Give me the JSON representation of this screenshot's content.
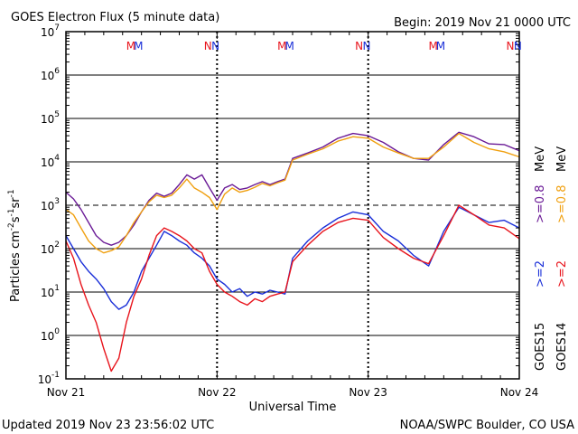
{
  "title": "GOES Electron Flux (5 minute data)",
  "begin_label": "Begin: 2019 Nov 21 0000 UTC",
  "footer_left": "Updated 2019 Nov 23 23:56:02 UTC",
  "footer_right": "NOAA/SWPC Boulder, CO USA",
  "colors": {
    "goes15_2mev": "#1a2fd8",
    "goes14_2mev": "#e8141c",
    "goes15_08mev": "#6a1a96",
    "goes14_08mev": "#f0a010",
    "grid": "#000000"
  },
  "legend": {
    "goes15_label": "GOES15",
    "goes14_label": "GOES14",
    "goes15_2mev": ">=2",
    "goes14_2mev": ">=2",
    "goes15_08mev": ">=0.8",
    "goes14_08mev": ">=0.8",
    "unit": "MeV"
  },
  "markers": [
    {
      "label": "M",
      "color": "#e8141c",
      "day": 0.43
    },
    {
      "label": "M",
      "color": "#1a2fd8",
      "day": 0.48
    },
    {
      "label": "N",
      "color": "#e8141c",
      "day": 0.94
    },
    {
      "label": "N",
      "color": "#1a2fd8",
      "day": 0.99
    },
    {
      "label": "M",
      "color": "#e8141c",
      "day": 1.43
    },
    {
      "label": "M",
      "color": "#1a2fd8",
      "day": 1.48
    },
    {
      "label": "N",
      "color": "#e8141c",
      "day": 1.94
    },
    {
      "label": "N",
      "color": "#1a2fd8",
      "day": 1.99
    },
    {
      "label": "M",
      "color": "#e8141c",
      "day": 2.43
    },
    {
      "label": "M",
      "color": "#1a2fd8",
      "day": 2.48
    },
    {
      "label": "N",
      "color": "#e8141c",
      "day": 2.94
    },
    {
      "label": "N",
      "color": "#1a2fd8",
      "day": 2.99
    }
  ],
  "chart_data": {
    "type": "line",
    "title": "GOES Electron Flux (5 minute data)",
    "xlabel": "Universal Time",
    "ylabel": "Particles cm-2s-1sr-1",
    "x_ticks": [
      "Nov 21",
      "Nov 22",
      "Nov 23",
      "Nov 24"
    ],
    "y_ticks": [
      {
        "base": "10",
        "exp": "-1"
      },
      {
        "base": "10",
        "exp": "0"
      },
      {
        "base": "10",
        "exp": "1"
      },
      {
        "base": "10",
        "exp": "2"
      },
      {
        "base": "10",
        "exp": "3"
      },
      {
        "base": "10",
        "exp": "4"
      },
      {
        "base": "10",
        "exp": "5"
      },
      {
        "base": "10",
        "exp": "6"
      },
      {
        "base": "10",
        "exp": "7"
      }
    ],
    "xlim": [
      "2019-11-21 00:00",
      "2019-11-24 00:00"
    ],
    "ylim": [
      0.1,
      10000000
    ],
    "y_scale": "log",
    "threshold_flux": 1000,
    "grid": true,
    "series": [
      {
        "name": "GOES15 >=0.8 MeV",
        "color": "#6a1a96",
        "x": [
          "2019-11-21 00:00",
          "2019-11-21 01:12",
          "2019-11-21 02:24",
          "2019-11-21 03:36",
          "2019-11-21 04:48",
          "2019-11-21 06:00",
          "2019-11-21 07:12",
          "2019-11-21 08:24",
          "2019-11-21 09:36",
          "2019-11-21 10:48",
          "2019-11-21 12:00",
          "2019-11-21 13:12",
          "2019-11-21 14:24",
          "2019-11-21 15:36",
          "2019-11-21 16:48",
          "2019-11-21 18:00",
          "2019-11-21 19:12",
          "2019-11-21 20:24",
          "2019-11-21 21:36",
          "2019-11-21 22:48",
          "2019-11-22 00:00",
          "2019-11-22 01:12",
          "2019-11-22 02:24",
          "2019-11-22 03:36",
          "2019-11-22 04:48",
          "2019-11-22 06:00",
          "2019-11-22 07:12",
          "2019-11-22 08:24",
          "2019-11-22 09:36",
          "2019-11-22 10:48",
          "2019-11-22 12:00",
          "2019-11-22 14:24",
          "2019-11-22 16:48",
          "2019-11-22 19:12",
          "2019-11-22 21:36",
          "2019-11-23 00:00",
          "2019-11-23 02:24",
          "2019-11-23 04:48",
          "2019-11-23 07:12",
          "2019-11-23 09:36",
          "2019-11-23 12:00",
          "2019-11-23 14:24",
          "2019-11-23 16:48",
          "2019-11-23 19:12",
          "2019-11-23 21:36",
          "2019-11-24 00:00"
        ],
        "y": [
          2000,
          1400,
          800,
          400,
          200,
          140,
          120,
          140,
          200,
          350,
          700,
          1300,
          1900,
          1600,
          1900,
          3000,
          5000,
          4000,
          5000,
          2500,
          1300,
          2500,
          3000,
          2300,
          2500,
          3000,
          3500,
          3000,
          3500,
          4000,
          12000,
          16000,
          22000,
          35000,
          45000,
          40000,
          28000,
          17000,
          12000,
          11000,
          25000,
          48000,
          38000,
          26000,
          25000,
          18000
        ]
      },
      {
        "name": "GOES14 >=0.8 MeV",
        "color": "#f0a010",
        "x": [
          "2019-11-21 00:00",
          "2019-11-21 01:12",
          "2019-11-21 02:24",
          "2019-11-21 03:36",
          "2019-11-21 04:48",
          "2019-11-21 06:00",
          "2019-11-21 07:12",
          "2019-11-21 08:24",
          "2019-11-21 09:36",
          "2019-11-21 10:48",
          "2019-11-21 12:00",
          "2019-11-21 13:12",
          "2019-11-21 14:24",
          "2019-11-21 15:36",
          "2019-11-21 16:48",
          "2019-11-21 18:00",
          "2019-11-21 19:12",
          "2019-11-21 20:24",
          "2019-11-21 21:36",
          "2019-11-21 22:48",
          "2019-11-22 00:00",
          "2019-11-22 01:12",
          "2019-11-22 02:24",
          "2019-11-22 03:36",
          "2019-11-22 04:48",
          "2019-11-22 06:00",
          "2019-11-22 07:12",
          "2019-11-22 08:24",
          "2019-11-22 09:36",
          "2019-11-22 10:48",
          "2019-11-22 12:00",
          "2019-11-22 14:24",
          "2019-11-22 16:48",
          "2019-11-22 19:12",
          "2019-11-22 21:36",
          "2019-11-23 00:00",
          "2019-11-23 02:24",
          "2019-11-23 04:48",
          "2019-11-23 07:12",
          "2019-11-23 09:36",
          "2019-11-23 12:00",
          "2019-11-23 14:24",
          "2019-11-23 16:48",
          "2019-11-23 19:12",
          "2019-11-23 21:36",
          "2019-11-24 00:00"
        ],
        "y": [
          800,
          600,
          300,
          150,
          100,
          80,
          90,
          110,
          200,
          400,
          700,
          1200,
          1700,
          1500,
          1700,
          2500,
          4000,
          2500,
          2000,
          1500,
          800,
          1800,
          2500,
          2000,
          2200,
          2600,
          3200,
          2800,
          3300,
          3800,
          11000,
          15000,
          20000,
          30000,
          38000,
          35000,
          22000,
          16000,
          12000,
          12000,
          22000,
          45000,
          28000,
          20000,
          17000,
          13000
        ]
      },
      {
        "name": "GOES15 >=2 MeV",
        "color": "#1a2fd8",
        "x": [
          "2019-11-21 00:00",
          "2019-11-21 01:12",
          "2019-11-21 02:24",
          "2019-11-21 03:36",
          "2019-11-21 04:48",
          "2019-11-21 06:00",
          "2019-11-21 07:12",
          "2019-11-21 08:24",
          "2019-11-21 09:36",
          "2019-11-21 10:48",
          "2019-11-21 12:00",
          "2019-11-21 13:12",
          "2019-11-21 14:24",
          "2019-11-21 15:36",
          "2019-11-21 16:48",
          "2019-11-21 18:00",
          "2019-11-21 19:12",
          "2019-11-21 20:24",
          "2019-11-21 21:36",
          "2019-11-21 22:48",
          "2019-11-22 00:00",
          "2019-11-22 01:12",
          "2019-11-22 02:24",
          "2019-11-22 03:36",
          "2019-11-22 04:48",
          "2019-11-22 06:00",
          "2019-11-22 07:12",
          "2019-11-22 08:24",
          "2019-11-22 09:36",
          "2019-11-22 10:48",
          "2019-11-22 12:00",
          "2019-11-22 14:24",
          "2019-11-22 16:48",
          "2019-11-22 19:12",
          "2019-11-22 21:36",
          "2019-11-23 00:00",
          "2019-11-23 02:24",
          "2019-11-23 04:48",
          "2019-11-23 07:12",
          "2019-11-23 09:36",
          "2019-11-23 12:00",
          "2019-11-23 14:24",
          "2019-11-23 16:48",
          "2019-11-23 19:12",
          "2019-11-23 21:36",
          "2019-11-24 00:00"
        ],
        "y": [
          200,
          100,
          50,
          30,
          20,
          12,
          6,
          4,
          5,
          10,
          30,
          60,
          120,
          250,
          200,
          150,
          120,
          80,
          60,
          40,
          20,
          15,
          10,
          12,
          8,
          10,
          9,
          11,
          10,
          9,
          60,
          150,
          300,
          500,
          700,
          600,
          250,
          150,
          70,
          40,
          250,
          900,
          600,
          400,
          450,
          300
        ]
      },
      {
        "name": "GOES14 >=2 MeV",
        "color": "#e8141c",
        "x": [
          "2019-11-21 00:00",
          "2019-11-21 01:12",
          "2019-11-21 02:24",
          "2019-11-21 03:36",
          "2019-11-21 04:48",
          "2019-11-21 06:00",
          "2019-11-21 07:12",
          "2019-11-21 08:24",
          "2019-11-21 09:36",
          "2019-11-21 10:48",
          "2019-11-21 12:00",
          "2019-11-21 13:12",
          "2019-11-21 14:24",
          "2019-11-21 15:36",
          "2019-11-21 16:48",
          "2019-11-21 18:00",
          "2019-11-21 19:12",
          "2019-11-21 20:24",
          "2019-11-21 21:36",
          "2019-11-21 22:48",
          "2019-11-22 00:00",
          "2019-11-22 01:12",
          "2019-11-22 02:24",
          "2019-11-22 03:36",
          "2019-11-22 04:48",
          "2019-11-22 06:00",
          "2019-11-22 07:12",
          "2019-11-22 08:24",
          "2019-11-22 09:36",
          "2019-11-22 10:48",
          "2019-11-22 12:00",
          "2019-11-22 14:24",
          "2019-11-22 16:48",
          "2019-11-22 19:12",
          "2019-11-22 21:36",
          "2019-11-23 00:00",
          "2019-11-23 02:24",
          "2019-11-23 04:48",
          "2019-11-23 07:12",
          "2019-11-23 09:36",
          "2019-11-23 12:00",
          "2019-11-23 14:24",
          "2019-11-23 16:48",
          "2019-11-23 19:12",
          "2019-11-23 21:36",
          "2019-11-24 00:00"
        ],
        "y": [
          150,
          60,
          15,
          5,
          2,
          0.5,
          0.15,
          0.3,
          2,
          8,
          20,
          70,
          200,
          300,
          250,
          200,
          150,
          100,
          80,
          30,
          15,
          10,
          8,
          6,
          5,
          7,
          6,
          8,
          9,
          10,
          50,
          120,
          250,
          400,
          500,
          450,
          180,
          100,
          60,
          45,
          200,
          1000,
          600,
          350,
          300,
          170
        ]
      }
    ]
  }
}
